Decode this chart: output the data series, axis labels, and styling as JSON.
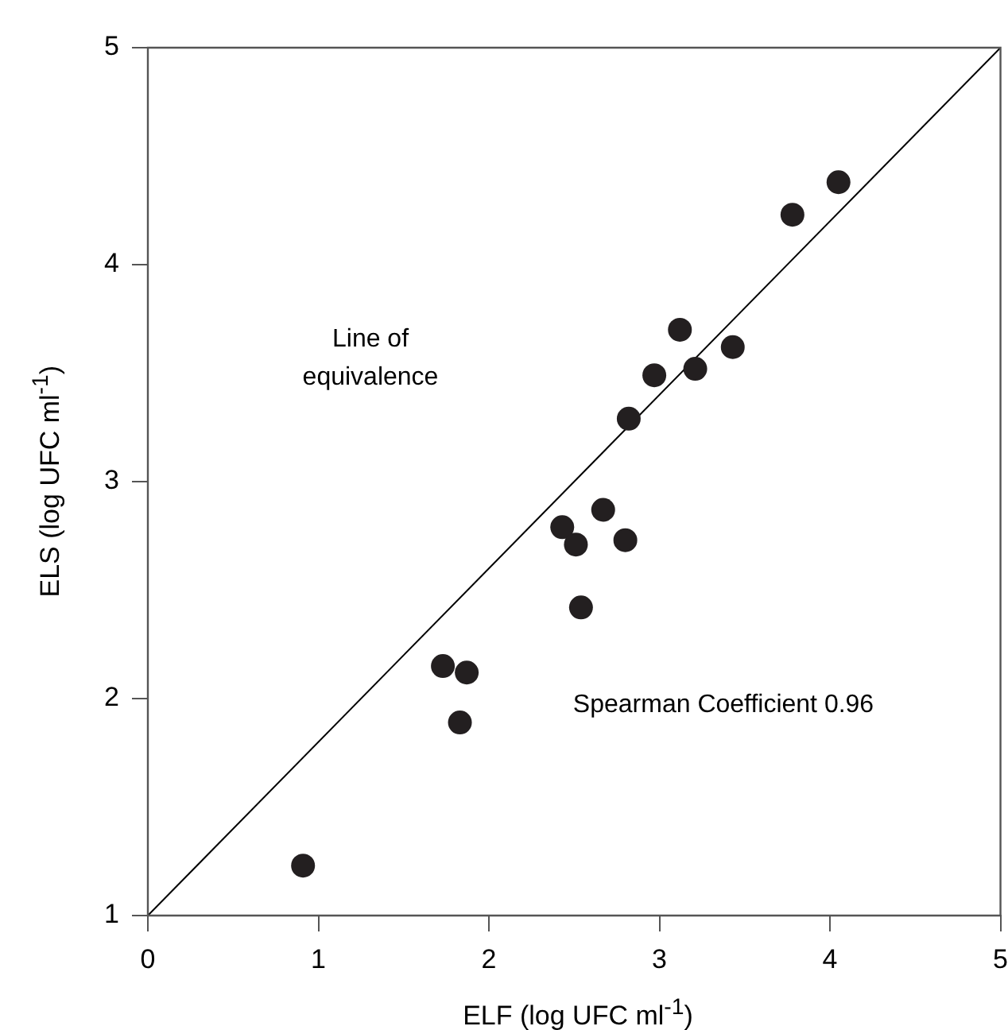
{
  "chart_data": {
    "type": "scatter",
    "xlabel": "ELF (log UFC ml$^{-1}$)",
    "ylabel": "ELS (log UFC ml$^{-1}$)",
    "x": [
      0.91,
      1.73,
      1.87,
      1.83,
      2.43,
      2.51,
      2.67,
      2.8,
      2.54,
      2.82,
      2.97,
      3.12,
      3.21,
      3.43,
      3.78,
      4.05
    ],
    "series": [
      {
        "color": "#231f20",
        "marker": "circle",
        "values": [
          1.23,
          2.15,
          2.12,
          1.89,
          2.79,
          2.71,
          2.87,
          2.73,
          2.42,
          3.29,
          3.49,
          3.7,
          3.52,
          3.62,
          4.23,
          4.38
        ]
      },
      {
        "type": "line",
        "x": [
          0,
          5
        ],
        "values": [
          1,
          5
        ],
        "color": "#000000",
        "marker": "none",
        "line_style": "solid"
      }
    ],
    "annotations": [
      "Line of\nequivalence",
      "Spearman Coefficient 0.96"
    ],
    "xlim": [
      0,
      5
    ],
    "ylim": [
      1,
      5
    ],
    "xticks": [
      0,
      1,
      2,
      3,
      4,
      5
    ],
    "yticks": [
      1,
      2,
      3,
      4,
      5
    ],
    "grid": false,
    "legend": false
  }
}
